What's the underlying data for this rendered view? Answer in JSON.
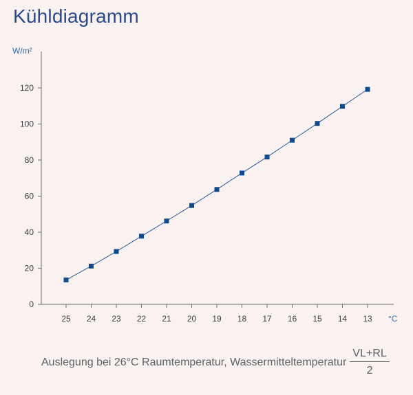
{
  "chart_data": {
    "type": "line",
    "title": "Kühldiagramm",
    "ylabel": "W/m²",
    "xlabel": "°C",
    "categories": [
      "25",
      "24",
      "23",
      "22",
      "21",
      "20",
      "19",
      "18",
      "17",
      "16",
      "15",
      "14",
      "13"
    ],
    "series": [
      {
        "values": [
          13.5,
          21.2,
          29.3,
          37.8,
          46.2,
          54.8,
          63.7,
          72.8,
          81.7,
          91.0,
          100.3,
          109.8,
          119.2
        ]
      }
    ],
    "yticks": [
      0,
      20,
      40,
      60,
      80,
      100,
      120
    ],
    "ylim": [
      0,
      140
    ],
    "grid": false,
    "marker": "square",
    "colors": {
      "line": "#2a5a9c",
      "marker": "#0f4a8c",
      "axis": "#6a6e72",
      "title": "#2a4a8c",
      "unit": "#2f6cb0"
    }
  },
  "caption": {
    "text": "Auslegung bei 26°C Raumtemperatur, Wassermitteltemperatur",
    "numerator": "VL+RL",
    "denominator": "2"
  }
}
